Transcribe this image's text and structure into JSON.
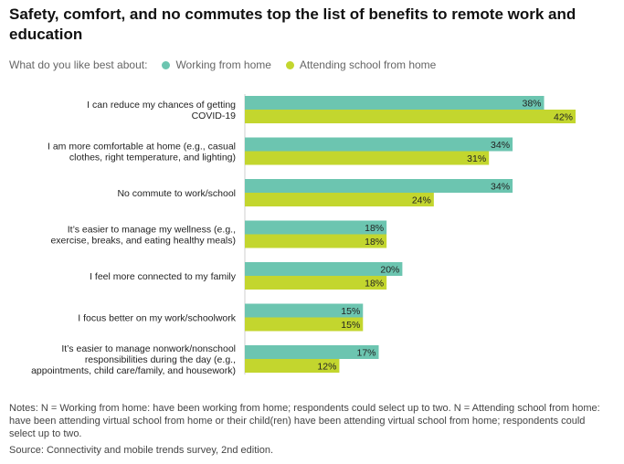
{
  "title": "Safety, comfort, and no commutes top the list of benefits to remote work and education",
  "legend": {
    "question": "What do you like best about:",
    "items": [
      {
        "label": "Working from home",
        "color": "#6cc5b0"
      },
      {
        "label": "Attending school from home",
        "color": "#c3d62e"
      }
    ]
  },
  "chart_data": {
    "type": "bar",
    "orientation": "horizontal",
    "categories": [
      [
        "I can reduce my chances of getting",
        "COVID-19"
      ],
      [
        "I am more comfortable at home (e.g., casual",
        "clothes, right temperature, and lighting)"
      ],
      [
        "No commute to work/school"
      ],
      [
        "It’s easier to manage my wellness (e.g.,",
        "exercise, breaks, and eating healthy meals)"
      ],
      [
        "I feel more connected to my family"
      ],
      [
        "I focus better on my work/schoolwork"
      ],
      [
        "It’s easier to manage nonwork/nonschool",
        "responsibilities during the day (e.g.,",
        "appointments, child care/family, and housework)"
      ]
    ],
    "series": [
      {
        "name": "Working from home",
        "color": "#6cc5b0",
        "values": [
          38,
          34,
          34,
          18,
          20,
          15,
          17
        ]
      },
      {
        "name": "Attending school from home",
        "color": "#c3d62e",
        "values": [
          42,
          31,
          24,
          18,
          18,
          15,
          12
        ]
      }
    ],
    "value_suffix": "%",
    "xlim": [
      0,
      42
    ],
    "grid": false
  },
  "notes": "Notes: N = Working from home: have been working from home; respondents could select up to two. N = Attending school from home: have been attending virtual school from home or their child(ren) have been attending virtual school from home; respondents could select up to two.",
  "source": "Source: Connectivity and mobile trends survey, 2nd edition."
}
